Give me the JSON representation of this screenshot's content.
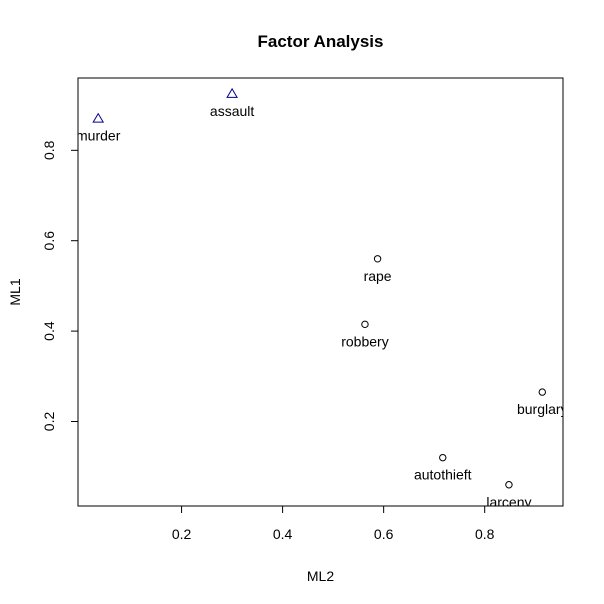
{
  "chart_data": {
    "type": "scatter",
    "title": "Factor Analysis",
    "xlabel": "ML2",
    "ylabel": "ML1",
    "xlim": [
      -0.005,
      0.955
    ],
    "ylim": [
      0.013,
      0.96
    ],
    "x_ticks": [
      0.2,
      0.4,
      0.6,
      0.8
    ],
    "y_ticks": [
      0.2,
      0.4,
      0.6,
      0.8
    ],
    "grid": false,
    "legend": "none",
    "points": [
      {
        "label": "murder",
        "x": 0.035,
        "y": 0.87,
        "marker": "triangle",
        "color": "#00008b"
      },
      {
        "label": "assault",
        "x": 0.3,
        "y": 0.925,
        "marker": "triangle",
        "color": "#00008b"
      },
      {
        "label": "rape",
        "x": 0.588,
        "y": 0.56,
        "marker": "circle",
        "color": "#000000"
      },
      {
        "label": "robbery",
        "x": 0.563,
        "y": 0.415,
        "marker": "circle",
        "color": "#000000"
      },
      {
        "label": "burglary",
        "x": 0.914,
        "y": 0.265,
        "marker": "circle",
        "color": "#000000"
      },
      {
        "label": "autothieft",
        "x": 0.717,
        "y": 0.12,
        "marker": "circle",
        "color": "#000000"
      },
      {
        "label": "larceny",
        "x": 0.848,
        "y": 0.06,
        "marker": "circle",
        "color": "#000000"
      }
    ]
  }
}
